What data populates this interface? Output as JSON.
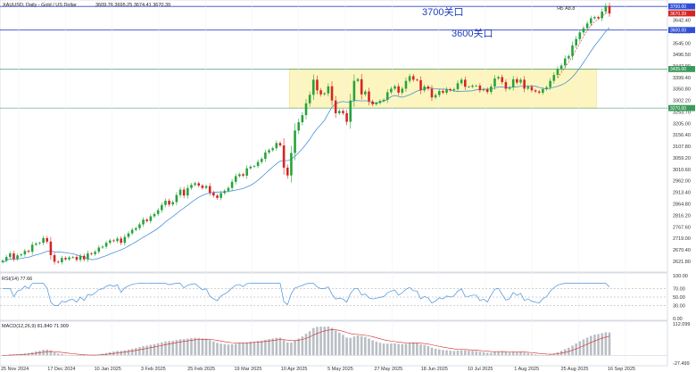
{
  "chart_data": [
    {
      "type": "candlestick",
      "title": "XAUUSD, Daily - Gold / US Dollar",
      "ohlc_label": "3609.76 3695.25 3674.41 3670.39",
      "y_ticks": [
        "3642.40",
        "3593.60",
        "3545.00",
        "3496.50",
        "3447.90",
        "3399.40",
        "3350.80",
        "3302.20",
        "3253.70",
        "3205.00",
        "3156.40",
        "3107.80",
        "3059.20",
        "3010.60",
        "2962.00",
        "2913.40",
        "2864.80",
        "2816.20",
        "2767.60",
        "2719.00",
        "2670.40",
        "2621.80"
      ],
      "x_ticks": [
        "25 Nov 2024",
        "17 Dec 2024",
        "10 Jan 2025",
        "3 Feb 2025",
        "25 Feb 2025",
        "19 Mar 2025",
        "10 Apr 2025",
        "5 May 2025",
        "27 May 2025",
        "18 Jun 2025",
        "10 Jul 2025",
        "1 Aug 2025",
        "25 Aug 2025",
        "16 Sep 2025"
      ],
      "ylim": [
        2595,
        3712
      ],
      "price_tags": [
        "3700.00",
        "3670.39",
        "3600.00",
        "3435.00",
        "3270.00"
      ],
      "hlines": [
        3700,
        3600,
        3435,
        3270
      ],
      "range_box": {
        "x_from": "9 Apr 2025",
        "x_to": "2 Sep 2025",
        "y_from": 3270,
        "y_to": 3435
      },
      "annotations": [
        {
          "text": "3700关口",
          "y": 3700
        },
        {
          "text": "3600关口",
          "y": 3600
        }
      ],
      "small_label": "ЯБ А8.8",
      "series_closes": [
        2625,
        2640,
        2655,
        2632,
        2647,
        2651,
        2666,
        2662,
        2692,
        2697,
        2700,
        2720,
        2705,
        2648,
        2620,
        2618,
        2636,
        2630,
        2638,
        2640,
        2628,
        2645,
        2630,
        2655,
        2652,
        2662,
        2680,
        2684,
        2700,
        2710,
        2707,
        2718,
        2700,
        2725,
        2740,
        2755,
        2762,
        2778,
        2798,
        2792,
        2812,
        2822,
        2838,
        2860,
        2878,
        2862,
        2872,
        2902,
        2925,
        2900,
        2932,
        2945,
        2952,
        2942,
        2932,
        2940,
        2912,
        2900,
        2890,
        2910,
        2920,
        2932,
        2958,
        2982,
        2990,
        2984,
        3015,
        3022,
        3025,
        3042,
        3055,
        3082,
        3092,
        3100,
        3122,
        3112,
        3018,
        2985,
        3080,
        3175,
        3210,
        3240,
        3290,
        3326,
        3390,
        3345,
        3328,
        3332,
        3362,
        3302,
        3248,
        3258,
        3248,
        3212,
        3302,
        3385,
        3392,
        3328,
        3340,
        3298,
        3286,
        3292,
        3300,
        3305,
        3337,
        3352,
        3362,
        3335,
        3352,
        3385,
        3405,
        3390,
        3388,
        3345,
        3361,
        3352,
        3315,
        3325,
        3342,
        3335,
        3350,
        3345,
        3350,
        3375,
        3390,
        3360,
        3360,
        3365,
        3365,
        3345,
        3350,
        3338,
        3361,
        3395,
        3401,
        3380,
        3352,
        3358,
        3392,
        3378,
        3390,
        3352,
        3360,
        3345,
        3340,
        3335,
        3350,
        3358,
        3385,
        3410,
        3435,
        3450,
        3480,
        3490,
        3535,
        3562,
        3590,
        3608,
        3628,
        3650,
        3655,
        3650,
        3678,
        3702,
        3670
      ],
      "rsi_label": "RSI(14) 77.66",
      "rsi_ticks": [
        "100.00",
        "70.00",
        "50.00",
        "30.00",
        "0.00"
      ],
      "macd_label": "MACD(12,26,9) 81.840 71.909",
      "macd_ticks": [
        "112.099",
        "-27.499"
      ]
    }
  ]
}
